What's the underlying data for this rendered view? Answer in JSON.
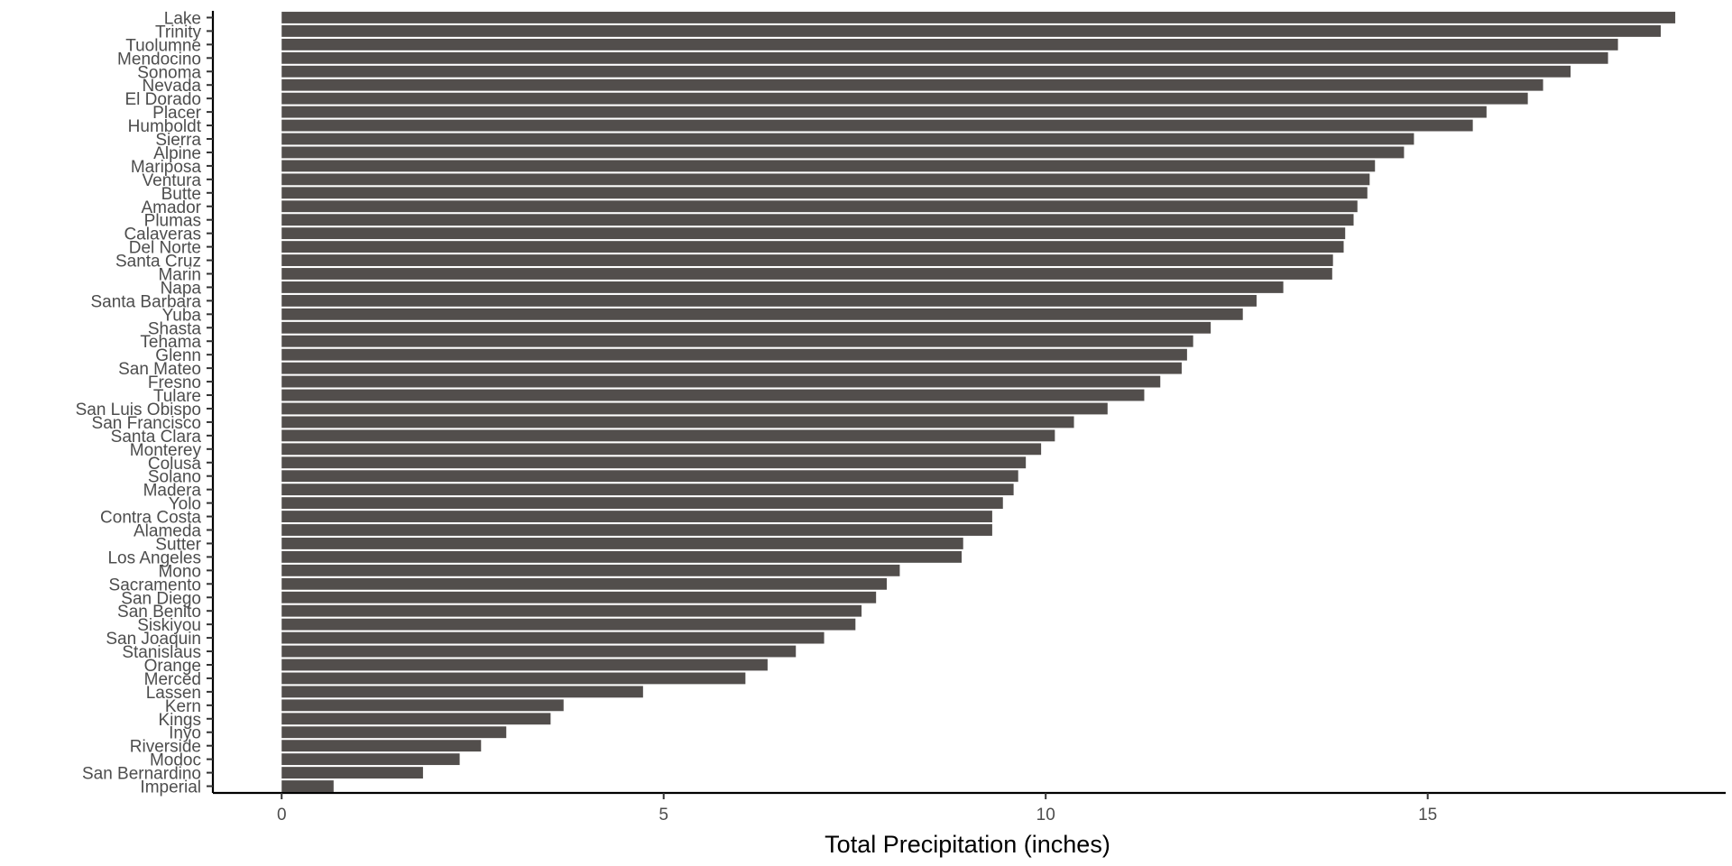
{
  "chart_data": {
    "type": "bar",
    "orientation": "horizontal",
    "title": "",
    "xlabel": "Total Precipitation (inches)",
    "ylabel": "",
    "xlim": [
      -0.9,
      18.9
    ],
    "xticks": [
      0,
      5,
      10,
      15
    ],
    "grid": false,
    "bar_color": "#524e4c",
    "categories": [
      "Lake",
      "Trinity",
      "Tuolumne",
      "Mendocino",
      "Sonoma",
      "Nevada",
      "El Dorado",
      "Placer",
      "Humboldt",
      "Sierra",
      "Alpine",
      "Mariposa",
      "Ventura",
      "Butte",
      "Amador",
      "Plumas",
      "Calaveras",
      "Del Norte",
      "Santa Cruz",
      "Marin",
      "Napa",
      "Santa Barbara",
      "Yuba",
      "Shasta",
      "Tehama",
      "Glenn",
      "San Mateo",
      "Fresno",
      "Tulare",
      "San Luis Obispo",
      "San Francisco",
      "Santa Clara",
      "Monterey",
      "Colusa",
      "Solano",
      "Madera",
      "Yolo",
      "Contra Costa",
      "Alameda",
      "Sutter",
      "Los Angeles",
      "Mono",
      "Sacramento",
      "San Diego",
      "San Benito",
      "Siskiyou",
      "San Joaquin",
      "Stanislaus",
      "Orange",
      "Merced",
      "Lassen",
      "Kern",
      "Kings",
      "Inyo",
      "Riverside",
      "Modoc",
      "San Bernardino",
      "Imperial"
    ],
    "values": [
      18.24,
      18.05,
      17.49,
      17.36,
      16.87,
      16.51,
      16.31,
      15.77,
      15.59,
      14.82,
      14.69,
      14.31,
      14.24,
      14.21,
      14.08,
      14.03,
      13.92,
      13.9,
      13.76,
      13.75,
      13.11,
      12.76,
      12.58,
      12.16,
      11.93,
      11.85,
      11.78,
      11.5,
      11.29,
      10.81,
      10.37,
      10.12,
      9.94,
      9.74,
      9.64,
      9.58,
      9.44,
      9.3,
      9.3,
      8.92,
      8.9,
      8.09,
      7.92,
      7.78,
      7.59,
      7.51,
      7.1,
      6.73,
      6.36,
      6.07,
      4.73,
      3.69,
      3.52,
      2.94,
      2.61,
      2.33,
      1.85,
      0.68
    ]
  }
}
